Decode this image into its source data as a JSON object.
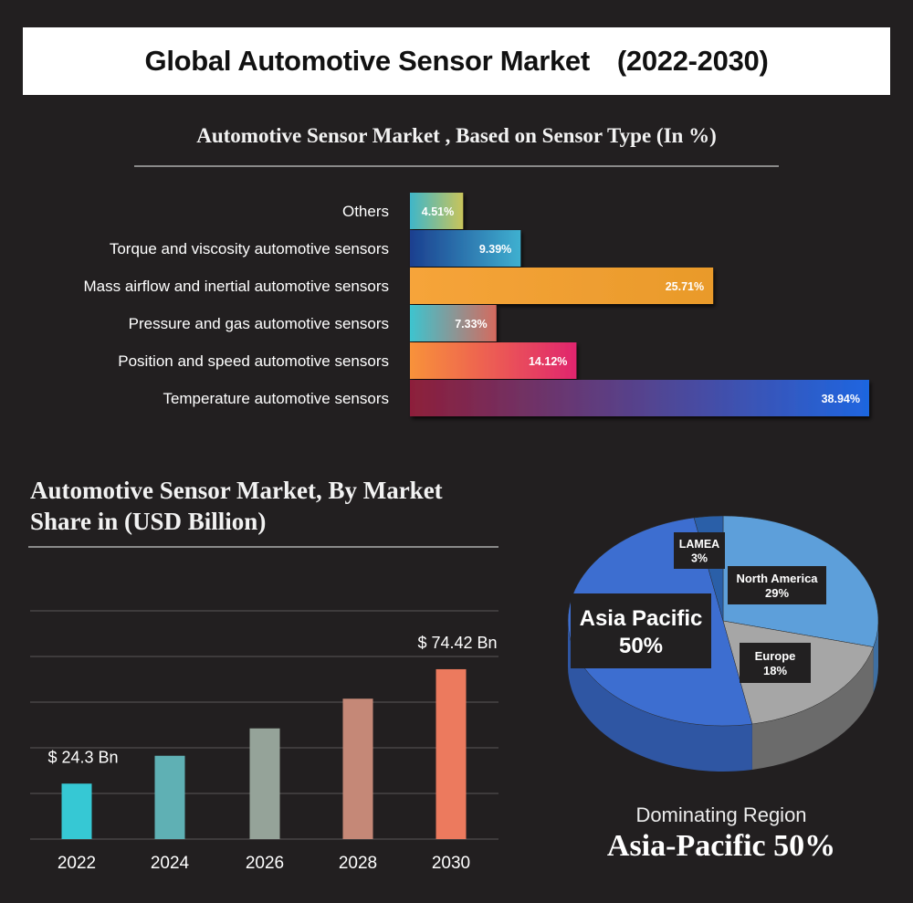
{
  "header": {
    "title": "Global Automotive Sensor Market",
    "period": "(2022-2030)"
  },
  "chart_data": [
    {
      "type": "bar",
      "orientation": "horizontal",
      "title": "Automotive Sensor Market , Based on Sensor Type (In %)",
      "categories": [
        "Others",
        "Torque and viscosity automotive sensors",
        "Mass airflow and inertial automotive sensors",
        "Pressure and gas automotive sensors",
        "Position and speed automotive sensors",
        "Temperature automotive sensors"
      ],
      "values": [
        4.51,
        9.39,
        25.71,
        7.33,
        14.12,
        38.94
      ],
      "value_labels": [
        "4.51%",
        "9.39%",
        "25.71%",
        "7.33%",
        "14.12%",
        "38.94%"
      ],
      "gradients": [
        [
          "#3fb6c9",
          "#c9c45a"
        ],
        [
          "#1b3f8f",
          "#3fb0d0"
        ],
        [
          "#f6a43a",
          "#e99a2a"
        ],
        [
          "#3dc4cf",
          "#d56a5e"
        ],
        [
          "#f8923a",
          "#e0256e"
        ],
        [
          "#8d1f3a",
          "#1e66e0"
        ]
      ],
      "xlim": [
        0,
        38.94
      ]
    },
    {
      "type": "bar",
      "title": "Automotive Sensor Market, By Market Share in (USD Billion)",
      "categories": [
        "2022",
        "2024",
        "2026",
        "2028",
        "2030"
      ],
      "values": [
        24.3,
        36.5,
        48.5,
        61.5,
        74.42
      ],
      "annotations": [
        {
          "category": "2022",
          "text": "$ 24.3 Bn"
        },
        {
          "category": "2030",
          "text": "$ 74.42 Bn"
        }
      ],
      "colors": [
        "#36c8d4",
        "#5fb0b4",
        "#95a399",
        "#c58877",
        "#ec7a5e"
      ],
      "grid": true,
      "ylim": [
        0,
        96
      ]
    },
    {
      "type": "pie",
      "title": "",
      "labels": [
        "North America",
        "Europe",
        "Asia Pacific",
        "LAMEA"
      ],
      "values": [
        29,
        18,
        50,
        3
      ],
      "value_labels": [
        "29%",
        "18%",
        "50%",
        "3%"
      ],
      "colors": [
        "#5d9fda",
        "#a6a6a6",
        "#3d6ed0",
        "#2a5fa8"
      ]
    }
  ],
  "footer": {
    "dominating_label": "Dominating Region",
    "dominating_value": "Asia-Pacific  50%"
  }
}
